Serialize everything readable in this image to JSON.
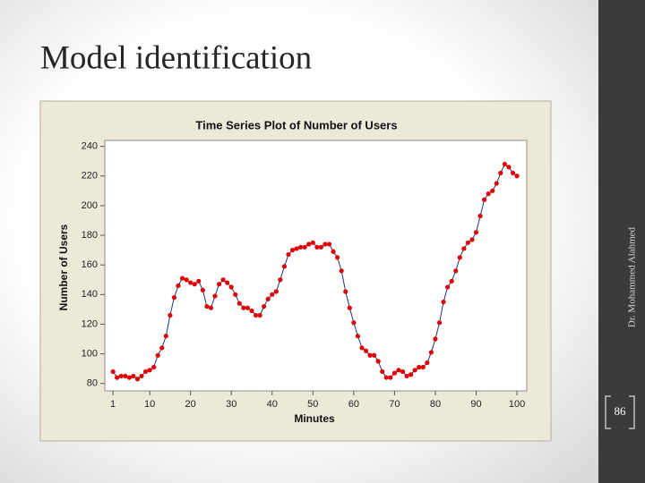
{
  "slide": {
    "title": "Model identification",
    "author": "Dr. Mohammed Alahmed",
    "page_number": "86"
  },
  "chart_data": {
    "type": "line",
    "title": "Time Series Plot of Number of Users",
    "x_label": "Minutes",
    "y_label": "Number of Users",
    "x": [
      1,
      2,
      3,
      4,
      5,
      6,
      7,
      8,
      9,
      10,
      11,
      12,
      13,
      14,
      15,
      16,
      17,
      18,
      19,
      20,
      21,
      22,
      23,
      24,
      25,
      26,
      27,
      28,
      29,
      30,
      31,
      32,
      33,
      34,
      35,
      36,
      37,
      38,
      39,
      40,
      41,
      42,
      43,
      44,
      45,
      46,
      47,
      48,
      49,
      50,
      51,
      52,
      53,
      54,
      55,
      56,
      57,
      58,
      59,
      60,
      61,
      62,
      63,
      64,
      65,
      66,
      67,
      68,
      69,
      70,
      71,
      72,
      73,
      74,
      75,
      76,
      77,
      78,
      79,
      80,
      81,
      82,
      83,
      84,
      85,
      86,
      87,
      88,
      89,
      90,
      91,
      92,
      93,
      94,
      95,
      96,
      97,
      98,
      99,
      100
    ],
    "series": [
      {
        "name": "Number of Users",
        "color": "#1f2f8f",
        "marker_color": "#e00000",
        "values": [
          88,
          84,
          85,
          85,
          84,
          85,
          83,
          85,
          88,
          89,
          91,
          99,
          104,
          112,
          126,
          138,
          146,
          151,
          150,
          148,
          147,
          149,
          143,
          132,
          131,
          139,
          147,
          150,
          148,
          145,
          140,
          134,
          131,
          131,
          129,
          126,
          126,
          132,
          137,
          140,
          142,
          150,
          159,
          167,
          170,
          171,
          172,
          172,
          174,
          175,
          172,
          172,
          174,
          174,
          169,
          165,
          156,
          142,
          131,
          121,
          112,
          104,
          102,
          99,
          99,
          95,
          88,
          84,
          84,
          87,
          89,
          88,
          85,
          86,
          89,
          91,
          91,
          94,
          101,
          110,
          121,
          135,
          145,
          149,
          156,
          165,
          171,
          175,
          177,
          182,
          193,
          204,
          208,
          210,
          215,
          222,
          228,
          226,
          222,
          220
        ]
      }
    ],
    "xlim": [
      -1,
      102.4
    ],
    "ylim": [
      75,
      244
    ],
    "xticks": [
      1,
      10,
      20,
      30,
      40,
      50,
      60,
      70,
      80,
      90,
      100
    ],
    "yticks": [
      80,
      100,
      120,
      140,
      160,
      180,
      200,
      220,
      240
    ]
  }
}
